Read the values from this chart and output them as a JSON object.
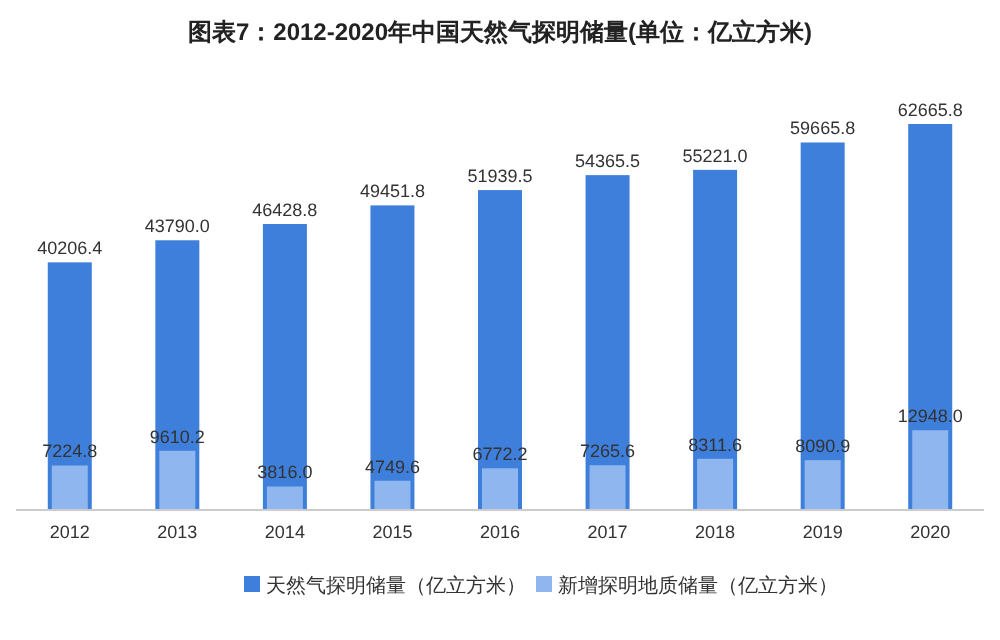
{
  "chart_data": {
    "type": "bar",
    "title": "图表7：2012-2020年中国天然气探明储量(单位：亿立方米)",
    "categories": [
      "2012",
      "2013",
      "2014",
      "2015",
      "2016",
      "2017",
      "2018",
      "2019",
      "2020"
    ],
    "series": [
      {
        "name": "天然气探明储量（亿立方米）",
        "color": "#3e7fdb",
        "values": [
          40206.4,
          43790.0,
          46428.8,
          49451.8,
          51939.5,
          54365.5,
          55221.0,
          59665.8,
          62665.8
        ],
        "value_labels": [
          "40206.4",
          "43790.0",
          "46428.8",
          "49451.8",
          "51939.5",
          "54365.5",
          "55221.0",
          "59665.8",
          "62665.8"
        ]
      },
      {
        "name": "新增探明地质储量（亿立方米）",
        "color": "#8fb6ee",
        "values": [
          7224.8,
          9610.2,
          3816.0,
          4749.6,
          6772.2,
          7265.6,
          8311.6,
          8090.9,
          12948.0
        ],
        "value_labels": [
          "7224.8",
          "9610.2",
          "3816.0",
          "4749.6",
          "6772.2",
          "7265.6",
          "8311.6",
          "8090.9",
          "12948.0"
        ]
      }
    ],
    "legend": "bottom"
  }
}
